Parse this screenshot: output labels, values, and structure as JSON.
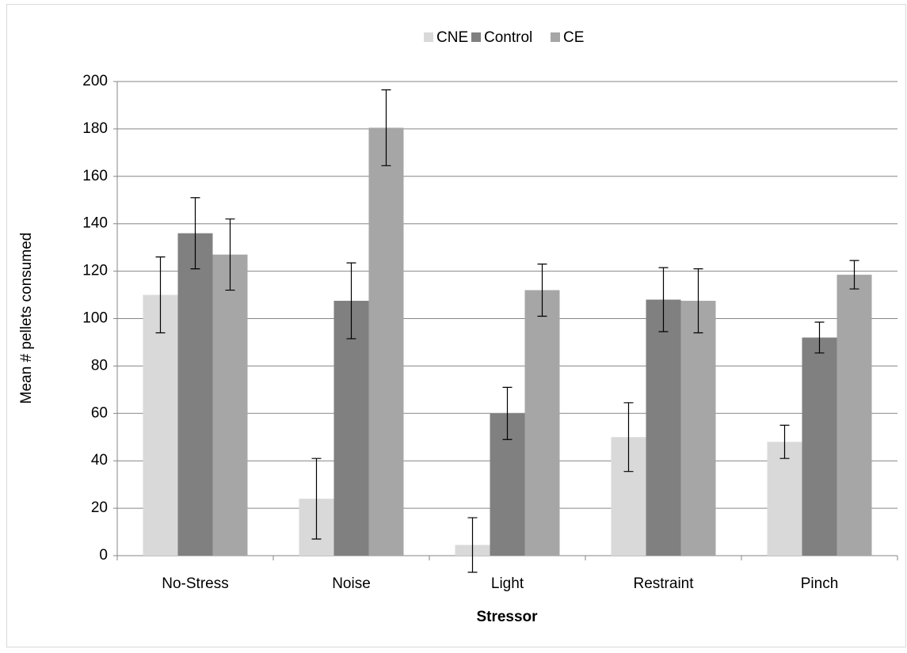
{
  "chart_data": {
    "type": "bar",
    "categories": [
      "No-Stress",
      "Noise",
      "Light",
      "Restraint",
      "Pinch"
    ],
    "series": [
      {
        "name": "CNE",
        "color": "#d9d9d9",
        "values": [
          110,
          24,
          4.5,
          50,
          48
        ],
        "errors": [
          16,
          17,
          11.5,
          14.5,
          7
        ]
      },
      {
        "name": "Control",
        "color": "#808080",
        "values": [
          136,
          107.5,
          60,
          108,
          92
        ],
        "errors": [
          15,
          16,
          11,
          13.5,
          6.5
        ]
      },
      {
        "name": "CE",
        "color": "#a6a6a6",
        "values": [
          127,
          180.5,
          112,
          107.5,
          118.5
        ],
        "errors": [
          15,
          16,
          11,
          13.5,
          6
        ]
      }
    ],
    "x_label": "Stressor",
    "y_label": "Mean # pellets consumed",
    "ylim": [
      0,
      200
    ],
    "yticks": [
      0,
      20,
      40,
      60,
      80,
      100,
      120,
      140,
      160,
      180,
      200
    ],
    "grid": true,
    "legend": "top"
  }
}
